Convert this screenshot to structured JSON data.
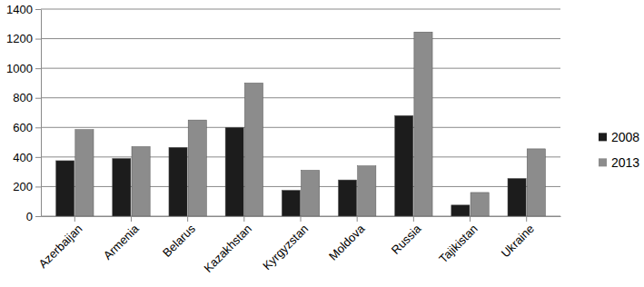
{
  "chart_data": {
    "type": "bar",
    "categories": [
      "Azerbaijan",
      "Armenia",
      "Belarus",
      "Kazakhstan",
      "Kyrgyzstan",
      "Moldova",
      "Russia",
      "Tajikistan",
      "Ukraine"
    ],
    "series": [
      {
        "name": "2008",
        "color": "#1c1c1c",
        "values": [
          375,
          390,
          465,
          600,
          175,
          245,
          680,
          75,
          255
        ]
      },
      {
        "name": "2013",
        "color": "#8c8c8c",
        "values": [
          585,
          470,
          650,
          900,
          310,
          340,
          1245,
          160,
          455
        ]
      }
    ],
    "ylim": [
      0,
      1400
    ],
    "yticks": [
      0,
      200,
      400,
      600,
      800,
      1000,
      1200,
      1400
    ],
    "grid": true,
    "legend": "right"
  }
}
